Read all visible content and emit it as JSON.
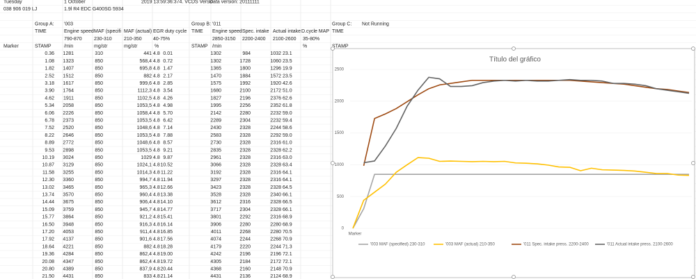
{
  "sheet": {
    "info1": [
      "Tuesday",
      "1 October",
      "2019 13:59:36:374. VCDS Versio",
      "Data version: 20111111"
    ],
    "info2": [
      "038 906 019 LJ",
      "1.9l R4 EDC G400SG 5934"
    ],
    "groups": [
      "Group A:",
      "'003",
      "Group B:",
      "'011",
      "Group C:",
      "Not Running"
    ],
    "headers": [
      "TIME",
      "Engine speed",
      "MAF (specifi",
      "MAF (actual)",
      "EGR duty cycle",
      "TIME",
      "Engine speed",
      "Spec. intake",
      "Actual intake",
      "D.cycle MAP",
      "TIME"
    ],
    "ranges": [
      "790-870",
      "230-310",
      "210-350",
      "40-75%",
      "2850-3150",
      "2200-2400",
      "2100-2600",
      "35-80%"
    ],
    "units": [
      "Marker",
      "STAMP",
      "/min",
      "mg/str",
      "mg/str",
      "%",
      "STAMP",
      "/min",
      "%",
      "STAMP"
    ],
    "rows": [
      [
        "0.36",
        "1281",
        "310",
        "441",
        "4.8",
        "0.01",
        "1302",
        "984",
        "1032",
        "23.1"
      ],
      [
        "1.08",
        "1323",
        "850",
        "568,4",
        "4.8",
        "0.72",
        "1302",
        "1728",
        "1060",
        "23.5"
      ],
      [
        "1.82",
        "1407",
        "850",
        "695,8",
        "4.8",
        "1.47",
        "1365",
        "1800",
        "1296",
        "19.9"
      ],
      [
        "2.52",
        "1512",
        "850",
        "882",
        "4.8",
        "2.17",
        "1470",
        "1884",
        "1572",
        "23.5"
      ],
      [
        "3.18",
        "1617",
        "850",
        "999,6",
        "4.8",
        "2.85",
        "1575",
        "1992",
        "1920",
        "42.6"
      ],
      [
        "3.90",
        "1764",
        "850",
        "1112,3",
        "4.8",
        "3.54",
        "1680",
        "2100",
        "2172",
        "51.0"
      ],
      [
        "4.62",
        "1911",
        "850",
        "1102,5",
        "4.8",
        "4.26",
        "1827",
        "2196",
        "2376",
        "62.6"
      ],
      [
        "5.34",
        "2058",
        "850",
        "1053,5",
        "4.8",
        "4.98",
        "1995",
        "2256",
        "2352",
        "61.8"
      ],
      [
        "6.06",
        "2226",
        "850",
        "1058,4",
        "4.8",
        "5.70",
        "2142",
        "2280",
        "2232",
        "59.0"
      ],
      [
        "6.78",
        "2373",
        "850",
        "1053,5",
        "4.8",
        "6.42",
        "2289",
        "2304",
        "2232",
        "59.4"
      ],
      [
        "7.52",
        "2520",
        "850",
        "1048,6",
        "4.8",
        "7.14",
        "2430",
        "2328",
        "2244",
        "58.6"
      ],
      [
        "8.22",
        "2646",
        "850",
        "1053,5",
        "4.8",
        "7.88",
        "2583",
        "2328",
        "2292",
        "59.0"
      ],
      [
        "8.89",
        "2772",
        "850",
        "1048,6",
        "4.8",
        "8.57",
        "2730",
        "2328",
        "2316",
        "61.0"
      ],
      [
        "9.53",
        "2898",
        "850",
        "1053,5",
        "4.8",
        "9.21",
        "2835",
        "2328",
        "2328",
        "62.2"
      ],
      [
        "10.19",
        "3024",
        "850",
        "1029",
        "4.8",
        "9.87",
        "2961",
        "2328",
        "2316",
        "63.0"
      ],
      [
        "10.87",
        "3129",
        "850",
        "1024,1",
        "4.8",
        "10.52",
        "3066",
        "2328",
        "2328",
        "63.4"
      ],
      [
        "11.58",
        "3255",
        "850",
        "1014,3",
        "4.8",
        "11.22",
        "3192",
        "2328",
        "2316",
        "64.1"
      ],
      [
        "12.30",
        "3360",
        "850",
        "994,7",
        "4.8",
        "11.94",
        "3297",
        "2328",
        "2316",
        "64.1"
      ],
      [
        "13.02",
        "3465",
        "850",
        "965,3",
        "4.8",
        "12.66",
        "3423",
        "2328",
        "2328",
        "64.5"
      ],
      [
        "13.74",
        "3570",
        "850",
        "960,4",
        "4.8",
        "13.38",
        "3528",
        "2328",
        "2340",
        "66.1"
      ],
      [
        "14.44",
        "3675",
        "850",
        "906,4",
        "4.8",
        "14.10",
        "3612",
        "2316",
        "2328",
        "66.5"
      ],
      [
        "15.09",
        "3759",
        "850",
        "945,7",
        "4.8",
        "14.77",
        "3717",
        "2304",
        "2328",
        "66.1"
      ],
      [
        "15.77",
        "3864",
        "850",
        "921,2",
        "4.8",
        "15.41",
        "3801",
        "2292",
        "2316",
        "68.9"
      ],
      [
        "16.50",
        "3948",
        "850",
        "916,3",
        "4.8",
        "16.14",
        "3906",
        "2280",
        "2280",
        "68.9"
      ],
      [
        "17.20",
        "4053",
        "850",
        "911,4",
        "4.8",
        "16.85",
        "4011",
        "2268",
        "2280",
        "70.5"
      ],
      [
        "17.92",
        "4137",
        "850",
        "901,6",
        "4.8",
        "17.56",
        "4074",
        "2244",
        "2268",
        "70.9"
      ],
      [
        "18.64",
        "4221",
        "850",
        "882",
        "4.8",
        "18.28",
        "4179",
        "2220",
        "2244",
        "71.3"
      ],
      [
        "19.36",
        "4284",
        "850",
        "862,4",
        "4.8",
        "19.00",
        "4242",
        "2196",
        "2196",
        "72.1"
      ],
      [
        "20.08",
        "4347",
        "850",
        "862,4",
        "4.8",
        "19.72",
        "4305",
        "2184",
        "2172",
        "72.1"
      ],
      [
        "20.80",
        "4389",
        "850",
        "837,9",
        "4.8",
        "20.44",
        "4368",
        "2160",
        "2148",
        "70.9"
      ],
      [
        "21.50",
        "4431",
        "850",
        "833",
        "4.8",
        "21.14",
        "4431",
        "2136",
        "2124",
        "68.9"
      ]
    ]
  },
  "chart_data": {
    "type": "line",
    "title": "Título del gráfico",
    "categories": [
      "Marker",
      null,
      null,
      null,
      null,
      null,
      null,
      null,
      null,
      null,
      null,
      null,
      null,
      null,
      null,
      null,
      null,
      null,
      null,
      null,
      null,
      null,
      null,
      null,
      null,
      null,
      null,
      null,
      null,
      null,
      null,
      null
    ],
    "series": [
      {
        "name": "'003 MAF (specified) 230-310",
        "color": "#a5a5a5",
        "values": [
          0,
          310,
          850,
          850,
          850,
          850,
          850,
          850,
          850,
          850,
          850,
          850,
          850,
          850,
          850,
          850,
          850,
          850,
          850,
          850,
          850,
          850,
          850,
          850,
          850,
          850,
          850,
          850,
          850,
          850,
          850,
          850
        ]
      },
      {
        "name": "'003 MAF (actual) 210-350",
        "color": "#ffc000",
        "values": [
          0,
          441,
          568.4,
          695.8,
          882,
          999.6,
          1112.3,
          1102.5,
          1053.5,
          1058.4,
          1053.5,
          1048.6,
          1053.5,
          1048.6,
          1053.5,
          1029,
          1024.1,
          1014.3,
          994.7,
          965.3,
          960.4,
          906.4,
          945.7,
          921.2,
          916.3,
          911.4,
          901.6,
          882,
          862.4,
          862.4,
          837.9,
          833
        ]
      },
      {
        "name": "'011 Spec. intake press. 2200-2400",
        "color": "#9e4a12",
        "values": [
          null,
          984,
          1728,
          1800,
          1884,
          1992,
          2100,
          2196,
          2256,
          2280,
          2304,
          2328,
          2328,
          2328,
          2328,
          2328,
          2328,
          2328,
          2328,
          2328,
          2328,
          2316,
          2304,
          2292,
          2280,
          2268,
          2244,
          2220,
          2196,
          2184,
          2160,
          2136
        ]
      },
      {
        "name": "'011 Actual intake press. 2100-2600",
        "color": "#636363",
        "values": [
          null,
          1032,
          1060,
          1296,
          1572,
          1920,
          2172,
          2376,
          2352,
          2232,
          2232,
          2244,
          2292,
          2316,
          2328,
          2316,
          2328,
          2316,
          2316,
          2328,
          2340,
          2328,
          2328,
          2316,
          2280,
          2280,
          2268,
          2244,
          2196,
          2172,
          2148,
          2124
        ]
      }
    ],
    "ylim": [
      0,
      2500
    ],
    "yticks": [
      0,
      500,
      1000,
      1500,
      2000,
      2500
    ],
    "grid": true,
    "legend": "bottom"
  }
}
